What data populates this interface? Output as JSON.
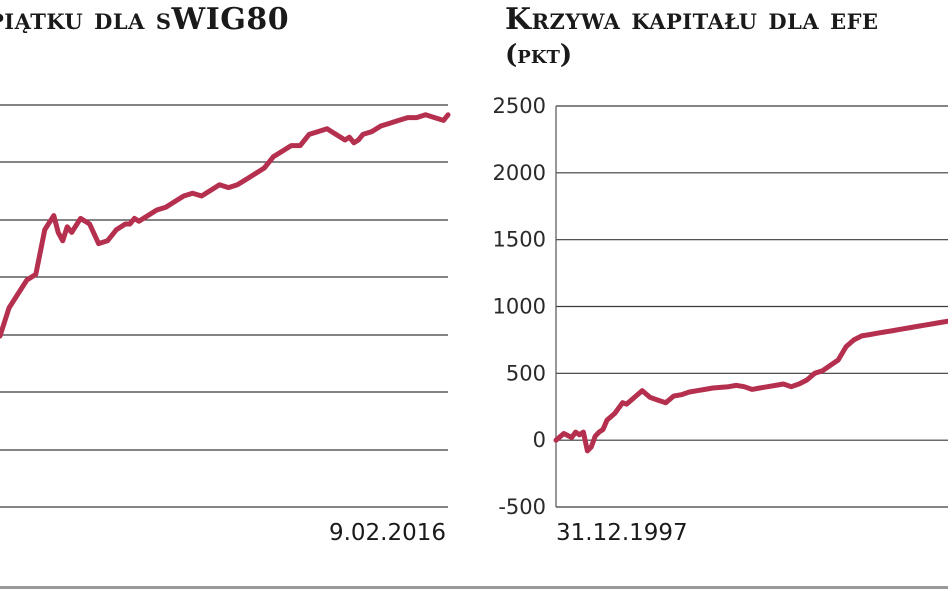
{
  "colors": {
    "line": "#b5304f",
    "grid": "#3a3a3a",
    "axis": "#555555"
  },
  "chart_data": [
    {
      "type": "line",
      "title": "piątku dla sWIG80",
      "end_label": "9.02.2016",
      "grid": true,
      "series": [
        {
          "color": "#b5304f",
          "x": [
            0,
            0.02,
            0.04,
            0.06,
            0.08,
            0.1,
            0.12,
            0.13,
            0.14,
            0.15,
            0.16,
            0.18,
            0.2,
            0.22,
            0.24,
            0.26,
            0.28,
            0.29,
            0.3,
            0.31,
            0.33,
            0.35,
            0.37,
            0.39,
            0.41,
            0.43,
            0.45,
            0.47,
            0.49,
            0.51,
            0.53,
            0.55,
            0.57,
            0.59,
            0.61,
            0.63,
            0.65,
            0.67,
            0.69,
            0.71,
            0.73,
            0.75,
            0.77,
            0.78,
            0.79,
            0.8,
            0.81,
            0.83,
            0.85,
            0.87,
            0.89,
            0.91,
            0.93,
            0.95,
            0.97,
            0.99,
            1.0
          ],
          "y": [
            0.2,
            0.3,
            0.35,
            0.4,
            0.42,
            0.58,
            0.63,
            0.57,
            0.54,
            0.59,
            0.57,
            0.62,
            0.6,
            0.53,
            0.54,
            0.58,
            0.6,
            0.6,
            0.62,
            0.61,
            0.63,
            0.65,
            0.66,
            0.68,
            0.7,
            0.71,
            0.7,
            0.72,
            0.74,
            0.73,
            0.74,
            0.76,
            0.78,
            0.8,
            0.84,
            0.86,
            0.88,
            0.88,
            0.92,
            0.93,
            0.94,
            0.92,
            0.9,
            0.91,
            0.89,
            0.9,
            0.92,
            0.93,
            0.95,
            0.96,
            0.97,
            0.98,
            0.98,
            0.99,
            0.98,
            0.97,
            0.99
          ]
        }
      ]
    },
    {
      "type": "line",
      "title": "Krzywa kapitału dla efe",
      "subtitle": "(pkt)",
      "start_label": "31.12.1997",
      "ylim": [
        -500,
        2500
      ],
      "yticks": [
        2500,
        2000,
        1500,
        1000,
        500,
        0,
        -500
      ],
      "grid": true,
      "series": [
        {
          "color": "#b5304f",
          "x": [
            0,
            0.02,
            0.04,
            0.05,
            0.06,
            0.07,
            0.08,
            0.09,
            0.1,
            0.11,
            0.12,
            0.13,
            0.15,
            0.17,
            0.18,
            0.2,
            0.22,
            0.24,
            0.26,
            0.28,
            0.3,
            0.32,
            0.34,
            0.36,
            0.38,
            0.4,
            0.42,
            0.44,
            0.46,
            0.48,
            0.5,
            0.52,
            0.54,
            0.56,
            0.58,
            0.6,
            0.62,
            0.64,
            0.66,
            0.68,
            0.7,
            0.72,
            0.74,
            0.76,
            0.78,
            0.8,
            0.82,
            0.84,
            0.86,
            0.88,
            0.9,
            0.92,
            0.94,
            0.96,
            0.98,
            1.0
          ],
          "y": [
            0,
            50,
            20,
            60,
            40,
            60,
            -80,
            -50,
            30,
            60,
            80,
            150,
            200,
            280,
            270,
            320,
            370,
            320,
            300,
            280,
            330,
            340,
            360,
            370,
            380,
            390,
            395,
            400,
            410,
            400,
            380,
            390,
            400,
            410,
            420,
            400,
            420,
            450,
            500,
            520,
            560,
            600,
            700,
            750,
            780,
            790,
            800,
            810,
            820,
            830,
            840,
            850,
            860,
            870,
            880,
            890
          ]
        }
      ]
    }
  ]
}
